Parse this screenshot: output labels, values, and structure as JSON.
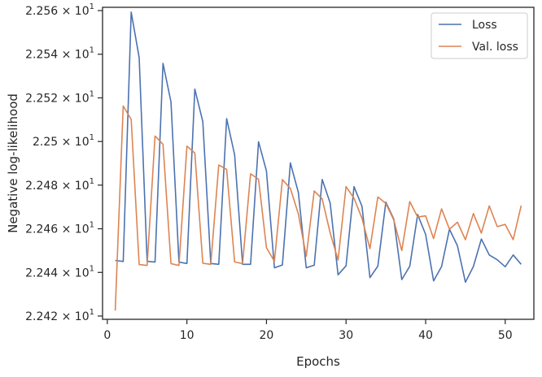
{
  "chart_data": {
    "type": "line",
    "xlabel": "Epochs",
    "ylabel": "Negative log-likelihood",
    "xlim": [
      -0.6,
      53.6
    ],
    "ylim": [
      22.4185,
      22.5615
    ],
    "xticks": [
      0,
      10,
      20,
      30,
      40,
      50
    ],
    "xtick_labels": [
      "0",
      "10",
      "20",
      "30",
      "40",
      "50"
    ],
    "yticks": [
      22.42,
      22.44,
      22.46,
      22.48,
      22.5,
      22.52,
      22.54,
      22.56
    ],
    "ytick_labels": [
      {
        "mantissa": "2.242",
        "base": "10",
        "exp": "1"
      },
      {
        "mantissa": "2.244",
        "base": "10",
        "exp": "1"
      },
      {
        "mantissa": "2.246",
        "base": "10",
        "exp": "1"
      },
      {
        "mantissa": "2.248",
        "base": "10",
        "exp": "1"
      },
      {
        "mantissa": "2.25",
        "base": "10",
        "exp": "1"
      },
      {
        "mantissa": "2.252",
        "base": "10",
        "exp": "1"
      },
      {
        "mantissa": "2.254",
        "base": "10",
        "exp": "1"
      },
      {
        "mantissa": "2.256",
        "base": "10",
        "exp": "1"
      }
    ],
    "legend_position": "top-right",
    "grid": false,
    "series": [
      {
        "name": "Loss",
        "color": "#4c72b0",
        "x": [
          1,
          2,
          3,
          4,
          5,
          6,
          7,
          8,
          9,
          10,
          11,
          12,
          13,
          14,
          15,
          16,
          17,
          18,
          19,
          20,
          21,
          22,
          23,
          24,
          25,
          26,
          27,
          28,
          29,
          30,
          31,
          32,
          33,
          34,
          35,
          36,
          37,
          38,
          39,
          40,
          41,
          42,
          43,
          44,
          45,
          46,
          47,
          48,
          49,
          50,
          51,
          52
        ],
        "y": [
          22.4455,
          22.445,
          22.5593,
          22.5385,
          22.4451,
          22.4447,
          22.5358,
          22.5181,
          22.4447,
          22.4441,
          22.524,
          22.5091,
          22.4441,
          22.4437,
          22.5105,
          22.4939,
          22.4437,
          22.4437,
          22.4999,
          22.4865,
          22.4421,
          22.4434,
          22.4902,
          22.4767,
          22.4421,
          22.4433,
          22.4826,
          22.4718,
          22.4389,
          22.443,
          22.4793,
          22.4703,
          22.4376,
          22.4429,
          22.4722,
          22.4644,
          22.4367,
          22.4428,
          22.4665,
          22.4574,
          22.4361,
          22.4427,
          22.4598,
          22.4522,
          22.4355,
          22.4427,
          22.4553,
          22.448,
          22.4458,
          22.4426,
          22.448,
          22.4437
        ]
      },
      {
        "name": "Val. loss",
        "color": "#dd8452",
        "x": [
          1,
          2,
          3,
          4,
          5,
          6,
          7,
          8,
          9,
          10,
          11,
          12,
          13,
          14,
          15,
          16,
          17,
          18,
          19,
          20,
          21,
          22,
          23,
          24,
          25,
          26,
          27,
          28,
          29,
          30,
          31,
          32,
          33,
          34,
          35,
          36,
          37,
          38,
          39,
          40,
          41,
          42,
          43,
          44,
          45,
          46,
          47,
          48,
          49,
          50,
          51,
          52
        ],
        "y": [
          22.4225,
          22.5163,
          22.5101,
          22.4436,
          22.4432,
          22.5025,
          22.4987,
          22.444,
          22.4432,
          22.4979,
          22.4947,
          22.4442,
          22.4437,
          22.4892,
          22.4872,
          22.4448,
          22.444,
          22.4852,
          22.4827,
          22.4513,
          22.4451,
          22.4825,
          22.4785,
          22.4668,
          22.4474,
          22.4773,
          22.4737,
          22.4581,
          22.4457,
          22.4793,
          22.474,
          22.4648,
          22.4509,
          22.4746,
          22.4716,
          22.464,
          22.45,
          22.4725,
          22.4654,
          22.4659,
          22.4555,
          22.4691,
          22.4598,
          22.463,
          22.455,
          22.467,
          22.458,
          22.4705,
          22.461,
          22.462,
          22.455,
          22.4706
        ]
      }
    ]
  }
}
